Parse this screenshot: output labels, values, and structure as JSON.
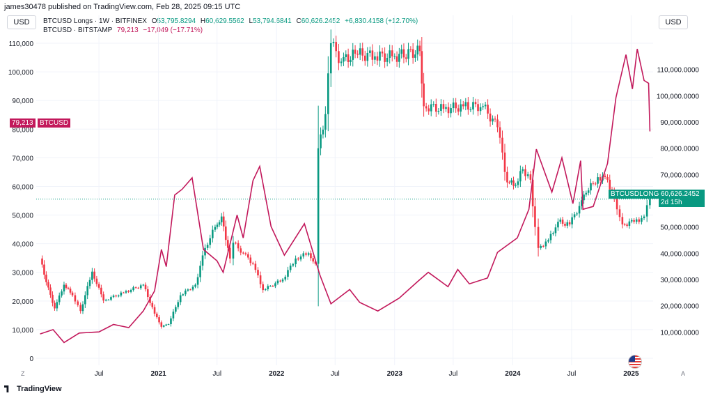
{
  "header": {
    "text": "james30478 published on TradingView.com, Feb 28, 2025 09:15 UTC"
  },
  "left_unit": "USD",
  "right_unit": "USD",
  "legend1": {
    "name": "BTCUSD Longs · 1W · BITFINEX",
    "o_label": "O",
    "o_value": "53,795.8294",
    "h_label": "H",
    "h_value": "60,629.5562",
    "l_label": "L",
    "l_value": "53,794.6841",
    "c_label": "C",
    "c_value": "60,626.2452",
    "change": "+6,830.4158 (+12.70%)"
  },
  "legend2": {
    "name": "BTCUSD · BITSTAMP",
    "value": "79,213",
    "change": "−17,049 (−17.71%)"
  },
  "btcusd_tag": {
    "value": "79,213",
    "label": "BTCUSD"
  },
  "longs_tag": {
    "label": "BTCUSDLONGS",
    "value": "60,626.2452",
    "countdown": "2d 15h"
  },
  "footer": {
    "brand": "TradingView"
  },
  "buttons": {
    "left": "Z",
    "right": "A"
  },
  "colors": {
    "up": "#089981",
    "down": "#f23645",
    "line": "#c2185b"
  },
  "chart_data": {
    "type": "line",
    "x_ticks": [
      "Jul",
      "2021",
      "Jul",
      "2022",
      "Jul",
      "2023",
      "Jul",
      "2024",
      "Jul",
      "2025"
    ],
    "x_tick_dates": [
      "2020-07-01",
      "2021-01-01",
      "2021-07-01",
      "2022-01-01",
      "2022-07-01",
      "2023-01-01",
      "2023-07-01",
      "2024-01-01",
      "2024-07-01",
      "2025-01-01"
    ],
    "x_range": [
      "2019-12-20",
      "2025-03-10"
    ],
    "left_axis": {
      "ticks": [
        "0",
        "10,000",
        "20,000",
        "30,000",
        "40,000",
        "50,000",
        "60,000",
        "70,000",
        "80,000",
        "90,000",
        "100,000",
        "110,000"
      ],
      "range": [
        0,
        110000
      ]
    },
    "right_axis": {
      "ticks": [
        "10,000.0000",
        "20,000.0000",
        "30,000.0000",
        "40,000.0000",
        "50,000.0000",
        "60,000.0000",
        "70,000.0000",
        "80,000.0000",
        "90,000.0000",
        "100,000.0000",
        "110,000.0000"
      ],
      "range": [
        0,
        120000
      ]
    },
    "grid": true,
    "series": [
      {
        "name": "BTCUSD",
        "axis": "left",
        "type": "line",
        "points": [
          [
            "2020-01-01",
            8500
          ],
          [
            "2020-02-10",
            10000
          ],
          [
            "2020-03-15",
            5500
          ],
          [
            "2020-05-01",
            8800
          ],
          [
            "2020-07-01",
            9200
          ],
          [
            "2020-08-15",
            11800
          ],
          [
            "2020-10-01",
            10700
          ],
          [
            "2020-11-15",
            16500
          ],
          [
            "2020-12-20",
            23500
          ],
          [
            "2021-01-10",
            38000
          ],
          [
            "2021-01-25",
            32000
          ],
          [
            "2021-02-20",
            57000
          ],
          [
            "2021-03-15",
            59000
          ],
          [
            "2021-04-15",
            63000
          ],
          [
            "2021-05-20",
            38000
          ],
          [
            "2021-07-01",
            34000
          ],
          [
            "2021-07-20",
            30000
          ],
          [
            "2021-09-01",
            50000
          ],
          [
            "2021-09-20",
            42000
          ],
          [
            "2021-10-20",
            62000
          ],
          [
            "2021-11-10",
            67000
          ],
          [
            "2021-12-15",
            46000
          ],
          [
            "2022-01-25",
            36000
          ],
          [
            "2022-03-28",
            47000
          ],
          [
            "2022-05-15",
            29000
          ],
          [
            "2022-06-18",
            19000
          ],
          [
            "2022-08-15",
            24000
          ],
          [
            "2022-09-15",
            19500
          ],
          [
            "2022-11-10",
            16500
          ],
          [
            "2023-01-15",
            21000
          ],
          [
            "2023-03-15",
            27000
          ],
          [
            "2023-04-15",
            30000
          ],
          [
            "2023-06-15",
            25000
          ],
          [
            "2023-07-15",
            31000
          ],
          [
            "2023-08-20",
            26000
          ],
          [
            "2023-10-15",
            28000
          ],
          [
            "2023-11-15",
            37000
          ],
          [
            "2024-01-15",
            42000
          ],
          [
            "2024-02-20",
            52000
          ],
          [
            "2024-03-14",
            73000
          ],
          [
            "2024-05-01",
            58000
          ],
          [
            "2024-06-01",
            70000
          ],
          [
            "2024-07-05",
            54000
          ],
          [
            "2024-07-29",
            69000
          ],
          [
            "2024-08-05",
            52000
          ],
          [
            "2024-09-06",
            53000
          ],
          [
            "2024-10-20",
            68000
          ],
          [
            "2024-11-15",
            91000
          ],
          [
            "2024-12-16",
            106000
          ],
          [
            "2025-01-05",
            94000
          ],
          [
            "2025-01-20",
            108000
          ],
          [
            "2025-02-10",
            97000
          ],
          [
            "2025-02-24",
            96000
          ],
          [
            "2025-02-28",
            79213
          ]
        ]
      },
      {
        "name": "BTCUSD Longs",
        "axis": "right",
        "type": "candlestick",
        "points": [
          [
            "2020-01-01",
            38000
          ],
          [
            "2020-01-20",
            29000
          ],
          [
            "2020-02-15",
            19000
          ],
          [
            "2020-03-15",
            28000
          ],
          [
            "2020-04-10",
            24000
          ],
          [
            "2020-05-05",
            18000
          ],
          [
            "2020-06-10",
            33000
          ],
          [
            "2020-07-15",
            22000
          ],
          [
            "2020-09-15",
            25000
          ],
          [
            "2020-11-15",
            28000
          ],
          [
            "2020-12-20",
            17000
          ],
          [
            "2021-01-10",
            12000
          ],
          [
            "2021-02-01",
            13000
          ],
          [
            "2021-03-10",
            24000
          ],
          [
            "2021-04-25",
            28000
          ],
          [
            "2021-05-25",
            42000
          ],
          [
            "2021-06-25",
            50000
          ],
          [
            "2021-07-15",
            54000
          ],
          [
            "2021-08-10",
            38000
          ],
          [
            "2021-08-20",
            44000
          ],
          [
            "2021-09-20",
            40000
          ],
          [
            "2021-10-20",
            36000
          ],
          [
            "2021-11-20",
            26000
          ],
          [
            "2022-01-20",
            30000
          ],
          [
            "2022-03-01",
            38000
          ],
          [
            "2022-04-10",
            40000
          ],
          [
            "2022-05-01",
            36000
          ],
          [
            "2022-05-10",
            80000
          ],
          [
            "2022-06-01",
            93000
          ],
          [
            "2022-06-18",
            120000
          ],
          [
            "2022-07-20",
            113000
          ],
          [
            "2022-09-01",
            116000
          ],
          [
            "2022-11-01",
            115000
          ],
          [
            "2023-01-01",
            115000
          ],
          [
            "2023-03-20",
            117000
          ],
          [
            "2023-04-01",
            96000
          ],
          [
            "2023-06-01",
            95000
          ],
          [
            "2023-08-01",
            96000
          ],
          [
            "2023-10-01",
            96000
          ],
          [
            "2023-11-15",
            88000
          ],
          [
            "2023-12-15",
            67000
          ],
          [
            "2024-01-10",
            66000
          ],
          [
            "2024-02-01",
            72000
          ],
          [
            "2024-02-25",
            68000
          ],
          [
            "2024-03-10",
            50000
          ],
          [
            "2024-03-20",
            42000
          ],
          [
            "2024-04-20",
            45000
          ],
          [
            "2024-05-20",
            52000
          ],
          [
            "2024-06-25",
            51000
          ],
          [
            "2024-07-25",
            58000
          ],
          [
            "2024-08-15",
            63000
          ],
          [
            "2024-09-20",
            69000
          ],
          [
            "2024-10-20",
            68000
          ],
          [
            "2024-11-10",
            61000
          ],
          [
            "2024-12-05",
            51000
          ],
          [
            "2025-01-10",
            52000
          ],
          [
            "2025-02-10",
            54000
          ],
          [
            "2025-02-28",
            60626
          ]
        ]
      }
    ]
  }
}
